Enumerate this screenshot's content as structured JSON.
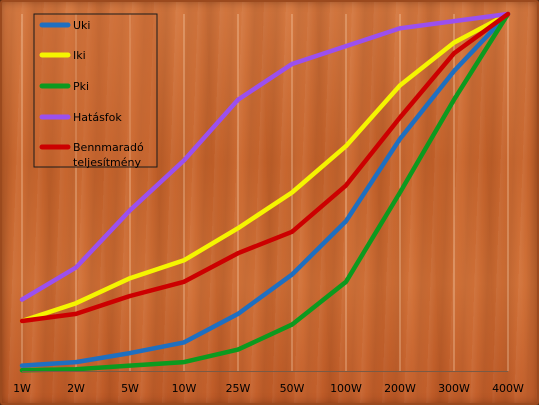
{
  "chart_data": {
    "type": "line",
    "title": "",
    "xlabel": "",
    "ylabel": "",
    "categories": [
      "1W",
      "2W",
      "5W",
      "10W",
      "25W",
      "50W",
      "100W",
      "200W",
      "300W",
      "400W"
    ],
    "ylim": [
      0,
      100
    ],
    "grid": "vertical",
    "legend": "top-left",
    "series": [
      {
        "name": "Uki",
        "color": "#1f6fc0",
        "values": [
          1.5,
          2.5,
          5,
          8,
          16,
          27,
          42,
          65,
          84,
          100
        ]
      },
      {
        "name": "Iki",
        "color": "#f5f500",
        "values": [
          14,
          19,
          26,
          31,
          40,
          50,
          63,
          80,
          92,
          100
        ]
      },
      {
        "name": "Pki",
        "color": "#0c9a1f",
        "values": [
          0.2,
          0.5,
          1.5,
          2.5,
          6,
          13,
          25,
          50,
          76,
          100
        ]
      },
      {
        "name": "Hatásfok",
        "color": "#9b50ee",
        "values": [
          20,
          29,
          45,
          59,
          76,
          86,
          91,
          96,
          98,
          100
        ]
      },
      {
        "name": "Bennmaradó teljesítmény",
        "name_lines": [
          "Bennmaradó",
          "teljesítmény"
        ],
        "color": "#cc0000",
        "values": [
          14,
          16,
          21,
          25,
          33,
          39,
          52,
          71,
          89,
          100
        ]
      }
    ]
  }
}
